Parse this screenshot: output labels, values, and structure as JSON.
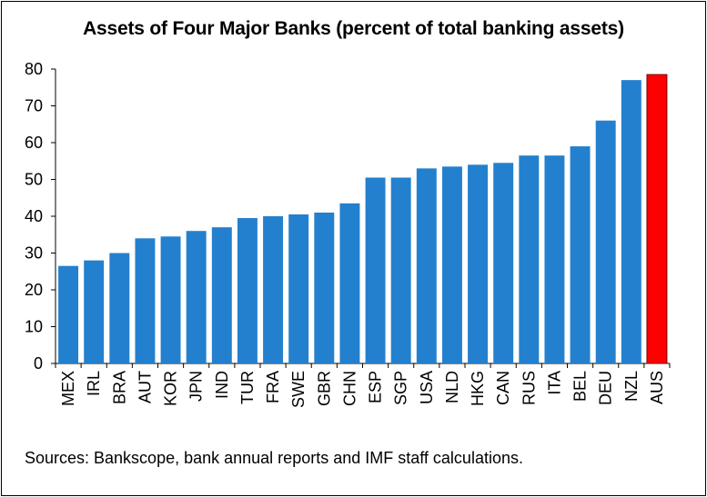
{
  "chart_data": {
    "type": "bar",
    "title": "Assets of Four Major Banks (percent of total banking assets)",
    "categories": [
      "MEX",
      "IRL",
      "BRA",
      "AUT",
      "KOR",
      "JPN",
      "IND",
      "TUR",
      "FRA",
      "SWE",
      "GBR",
      "CHN",
      "ESP",
      "SGP",
      "USA",
      "NLD",
      "HKG",
      "CAN",
      "RUS",
      "ITA",
      "BEL",
      "DEU",
      "NZL",
      "AUS"
    ],
    "values": [
      26.5,
      28,
      30,
      34,
      34.5,
      36,
      37,
      39.5,
      40,
      40.5,
      41,
      43.5,
      50.5,
      50.5,
      53,
      53.5,
      54,
      54.5,
      56.5,
      56.5,
      59,
      66,
      77,
      78.5
    ],
    "highlight": "AUS",
    "ylim": [
      0,
      80
    ],
    "yticks": [
      0,
      10,
      20,
      30,
      40,
      50,
      60,
      70,
      80
    ],
    "xlabel": "",
    "ylabel": "",
    "grid": false,
    "colors": {
      "bar": "#2380CE",
      "highlight": "#FF0000",
      "highlight_stroke": "#7a0000"
    }
  },
  "footer": {
    "source": "Sources:  Bankscope, bank annual reports and IMF staff calculations."
  }
}
